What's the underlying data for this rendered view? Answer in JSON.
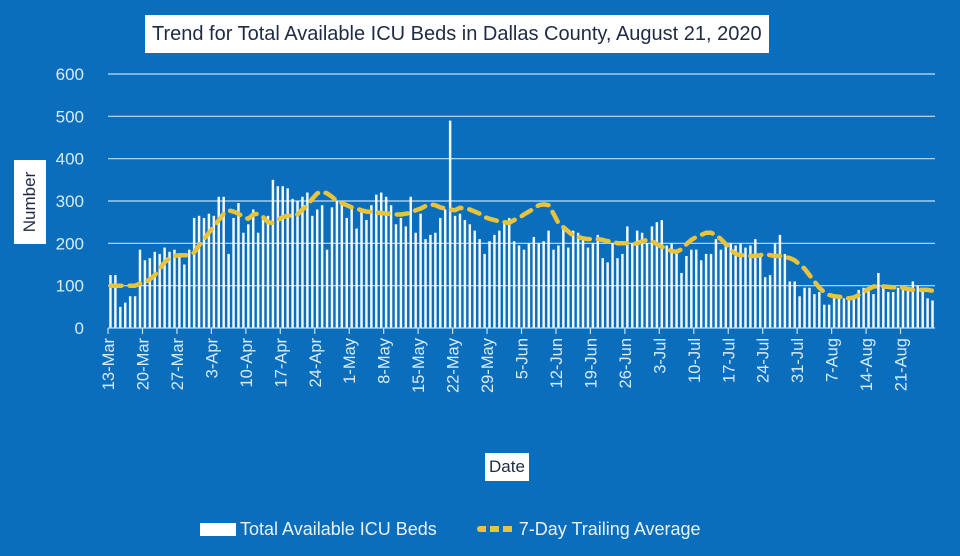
{
  "chart_data": {
    "type": "bar",
    "title": "Trend for Total Available ICU Beds in Dallas County, August 21, 2020",
    "xlabel": "Date",
    "ylabel": "Number",
    "ylim": [
      0,
      600
    ],
    "yticks": [
      0,
      100,
      200,
      300,
      400,
      500,
      600
    ],
    "grid": true,
    "legend_position": "bottom",
    "start_date": "13-Mar",
    "end_date": "21-Aug",
    "xtick_labels": [
      "13-Mar",
      "20-Mar",
      "27-Mar",
      "3-Apr",
      "10-Apr",
      "17-Apr",
      "24-Apr",
      "1-May",
      "8-May",
      "15-May",
      "22-May",
      "29-May",
      "5-Jun",
      "12-Jun",
      "19-Jun",
      "26-Jun",
      "3-Jul",
      "10-Jul",
      "17-Jul",
      "24-Jul",
      "31-Jul",
      "7-Aug",
      "14-Aug",
      "21-Aug"
    ],
    "series": [
      {
        "name": "Total Available ICU Beds",
        "kind": "bar",
        "color": "#ffffff",
        "values": [
          125,
          125,
          50,
          60,
          75,
          75,
          185,
          160,
          165,
          180,
          175,
          190,
          180,
          185,
          175,
          150,
          185,
          260,
          265,
          260,
          270,
          265,
          310,
          310,
          175,
          260,
          295,
          225,
          245,
          280,
          225,
          265,
          265,
          350,
          335,
          335,
          330,
          305,
          300,
          310,
          320,
          265,
          280,
          290,
          185,
          285,
          300,
          300,
          260,
          285,
          235,
          275,
          255,
          290,
          315,
          320,
          310,
          290,
          245,
          260,
          240,
          310,
          225,
          270,
          210,
          220,
          225,
          260,
          280,
          490,
          265,
          270,
          255,
          245,
          230,
          210,
          175,
          205,
          220,
          230,
          245,
          260,
          205,
          195,
          185,
          200,
          215,
          200,
          205,
          230,
          185,
          195,
          235,
          190,
          230,
          225,
          215,
          190,
          200,
          220,
          165,
          155,
          200,
          165,
          175,
          240,
          200,
          230,
          225,
          200,
          240,
          250,
          255,
          195,
          200,
          185,
          130,
          170,
          185,
          185,
          160,
          175,
          175,
          210,
          185,
          195,
          200,
          195,
          200,
          190,
          195,
          210,
          175,
          120,
          125,
          200,
          220,
          175,
          110,
          110,
          75,
          95,
          95,
          80,
          85,
          55,
          55,
          70,
          75,
          70,
          65,
          70,
          90,
          95,
          90,
          80,
          130,
          100,
          85,
          85,
          95,
          90,
          95,
          110,
          100,
          95,
          70,
          65
        ]
      },
      {
        "name": "7-Day Trailing Average",
        "kind": "line",
        "style": "dashed",
        "color": "#e8c43c",
        "values": [
          100,
          100,
          100,
          100,
          100,
          100,
          105,
          108,
          115,
          125,
          140,
          155,
          165,
          170,
          172,
          172,
          172,
          178,
          195,
          210,
          225,
          240,
          255,
          270,
          278,
          275,
          270,
          262,
          258,
          268,
          270,
          262,
          250,
          248,
          255,
          262,
          265,
          265,
          268,
          280,
          290,
          305,
          318,
          322,
          318,
          310,
          300,
          295,
          290,
          285,
          282,
          278,
          275,
          274,
          272,
          272,
          270,
          270,
          268,
          268,
          270,
          272,
          278,
          282,
          288,
          292,
          290,
          285,
          282,
          280,
          278,
          284,
          282,
          280,
          275,
          270,
          262,
          258,
          255,
          252,
          250,
          248,
          255,
          260,
          268,
          275,
          282,
          290,
          292,
          290,
          270,
          248,
          238,
          228,
          218,
          215,
          212,
          210,
          210,
          210,
          208,
          205,
          205,
          200,
          200,
          200,
          198,
          200,
          205,
          208,
          205,
          198,
          192,
          186,
          182,
          180,
          186,
          198,
          208,
          215,
          220,
          225,
          225,
          220,
          210,
          198,
          185,
          175,
          172,
          172,
          170,
          170,
          172,
          174,
          172,
          170,
          170,
          168,
          165,
          160,
          150,
          140,
          125,
          110,
          95,
          85,
          78,
          75,
          74,
          72,
          70,
          72,
          78,
          85,
          92,
          98,
          98,
          98,
          97,
          96,
          96,
          95,
          92,
          90,
          90,
          90,
          90,
          88
        ]
      }
    ]
  }
}
